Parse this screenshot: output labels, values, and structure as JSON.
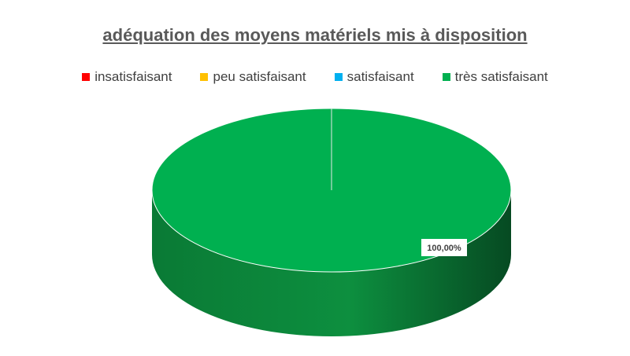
{
  "chart_data": {
    "type": "pie",
    "title": "adéquation des moyens matériels mis à disposition",
    "legend_position": "top",
    "series": [
      {
        "name": "insatisfaisant",
        "value": 0,
        "color": "#ff0000"
      },
      {
        "name": "peu satisfaisant",
        "value": 0,
        "color": "#ffc000"
      },
      {
        "name": "satisfaisant",
        "value": 0,
        "color": "#00b0f0"
      },
      {
        "name": "très satisfaisant",
        "value": 100,
        "color": "#00b050"
      }
    ],
    "data_labels": [
      "100,00%"
    ]
  }
}
